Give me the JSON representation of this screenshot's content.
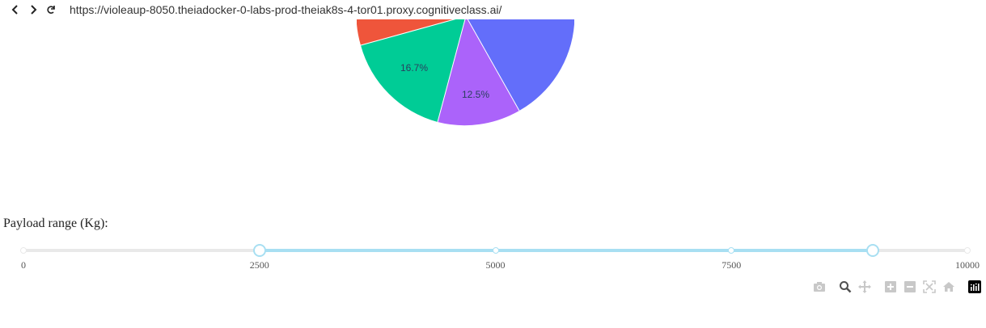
{
  "browser": {
    "url": "https://violeaup-8050.theiadocker-0-labs-prod-theiak8s-4-tor01.proxy.cognitiveclass.ai/",
    "back_icon": "chevron-left-icon",
    "forward_icon": "chevron-right-icon",
    "reload_icon": "reload-icon"
  },
  "chart_data": {
    "type": "pie",
    "slices": [
      {
        "label": "16.7%",
        "value": 16.7,
        "color": "#00cc96"
      },
      {
        "label": "12.5%",
        "value": 12.5,
        "color": "#ab63fa"
      }
    ],
    "colors": {
      "blue": "#636efa",
      "red": "#ef553b",
      "green": "#00cc96",
      "purple": "#ab63fa"
    }
  },
  "slider": {
    "label": "Payload range (Kg):",
    "min": 0,
    "max": 10000,
    "value": [
      2500,
      9000
    ],
    "marks": [
      "0",
      "2500",
      "5000",
      "7500",
      "10000"
    ],
    "mark_values": [
      0,
      2500,
      5000,
      7500,
      10000
    ],
    "colors": {
      "rail": "#e9e9e9",
      "track": "#a8dff2"
    }
  },
  "modebar": {
    "buttons": [
      "camera-icon",
      "zoom-icon",
      "pan-icon",
      "zoom-in-icon",
      "zoom-out-icon",
      "autoscale-icon",
      "home-icon",
      "plotly-logo-icon"
    ]
  }
}
